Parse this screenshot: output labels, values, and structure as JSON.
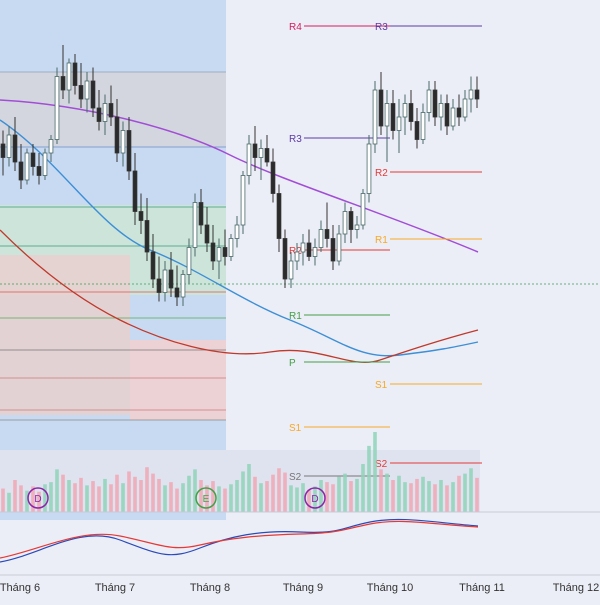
{
  "chart_data": {
    "type": "candlestick",
    "x_axis": {
      "tick_labels": [
        "Tháng 6",
        "Tháng 7",
        "Tháng 8",
        "Tháng 9",
        "Tháng 10",
        "Tháng 11",
        "Tháng 12"
      ]
    },
    "price_range": [
      0,
      100
    ],
    "candles": [
      {
        "o": 68,
        "h": 71,
        "l": 61,
        "c": 65
      },
      {
        "o": 65,
        "h": 72,
        "l": 63,
        "c": 70
      },
      {
        "o": 70,
        "h": 74,
        "l": 62,
        "c": 64
      },
      {
        "o": 64,
        "h": 68,
        "l": 58,
        "c": 60
      },
      {
        "o": 60,
        "h": 67,
        "l": 59,
        "c": 66
      },
      {
        "o": 66,
        "h": 68,
        "l": 61,
        "c": 63
      },
      {
        "o": 63,
        "h": 66,
        "l": 59,
        "c": 61
      },
      {
        "o": 61,
        "h": 67,
        "l": 60,
        "c": 66
      },
      {
        "o": 66,
        "h": 70,
        "l": 64,
        "c": 69
      },
      {
        "o": 69,
        "h": 85,
        "l": 68,
        "c": 83
      },
      {
        "o": 83,
        "h": 90,
        "l": 78,
        "c": 80
      },
      {
        "o": 80,
        "h": 87,
        "l": 77,
        "c": 86
      },
      {
        "o": 86,
        "h": 88,
        "l": 79,
        "c": 81
      },
      {
        "o": 81,
        "h": 86,
        "l": 76,
        "c": 78
      },
      {
        "o": 78,
        "h": 84,
        "l": 75,
        "c": 82
      },
      {
        "o": 82,
        "h": 85,
        "l": 74,
        "c": 76
      },
      {
        "o": 76,
        "h": 80,
        "l": 71,
        "c": 73
      },
      {
        "o": 73,
        "h": 79,
        "l": 70,
        "c": 77
      },
      {
        "o": 77,
        "h": 81,
        "l": 72,
        "c": 74
      },
      {
        "o": 74,
        "h": 78,
        "l": 64,
        "c": 66
      },
      {
        "o": 66,
        "h": 73,
        "l": 63,
        "c": 71
      },
      {
        "o": 71,
        "h": 74,
        "l": 60,
        "c": 62
      },
      {
        "o": 62,
        "h": 66,
        "l": 50,
        "c": 53
      },
      {
        "o": 53,
        "h": 57,
        "l": 48,
        "c": 51
      },
      {
        "o": 51,
        "h": 56,
        "l": 42,
        "c": 44
      },
      {
        "o": 44,
        "h": 48,
        "l": 36,
        "c": 38
      },
      {
        "o": 38,
        "h": 43,
        "l": 33,
        "c": 35
      },
      {
        "o": 35,
        "h": 42,
        "l": 33,
        "c": 40
      },
      {
        "o": 40,
        "h": 44,
        "l": 34,
        "c": 36
      },
      {
        "o": 36,
        "h": 41,
        "l": 32,
        "c": 34
      },
      {
        "o": 34,
        "h": 40,
        "l": 32,
        "c": 39
      },
      {
        "o": 39,
        "h": 47,
        "l": 37,
        "c": 45
      },
      {
        "o": 45,
        "h": 57,
        "l": 43,
        "c": 55
      },
      {
        "o": 55,
        "h": 58,
        "l": 48,
        "c": 50
      },
      {
        "o": 50,
        "h": 54,
        "l": 44,
        "c": 46
      },
      {
        "o": 46,
        "h": 50,
        "l": 40,
        "c": 42
      },
      {
        "o": 42,
        "h": 47,
        "l": 38,
        "c": 45
      },
      {
        "o": 45,
        "h": 49,
        "l": 41,
        "c": 43
      },
      {
        "o": 43,
        "h": 48,
        "l": 42,
        "c": 47
      },
      {
        "o": 47,
        "h": 52,
        "l": 45,
        "c": 50
      },
      {
        "o": 50,
        "h": 62,
        "l": 48,
        "c": 61
      },
      {
        "o": 61,
        "h": 70,
        "l": 59,
        "c": 68
      },
      {
        "o": 68,
        "h": 72,
        "l": 62,
        "c": 65
      },
      {
        "o": 65,
        "h": 69,
        "l": 60,
        "c": 67
      },
      {
        "o": 67,
        "h": 70,
        "l": 63,
        "c": 64
      },
      {
        "o": 64,
        "h": 67,
        "l": 55,
        "c": 57
      },
      {
        "o": 57,
        "h": 59,
        "l": 44,
        "c": 47
      },
      {
        "o": 47,
        "h": 49,
        "l": 36,
        "c": 38
      },
      {
        "o": 38,
        "h": 44,
        "l": 36,
        "c": 42
      },
      {
        "o": 42,
        "h": 46,
        "l": 40,
        "c": 44
      },
      {
        "o": 44,
        "h": 48,
        "l": 41,
        "c": 46
      },
      {
        "o": 46,
        "h": 49,
        "l": 42,
        "c": 43
      },
      {
        "o": 43,
        "h": 47,
        "l": 41,
        "c": 45
      },
      {
        "o": 45,
        "h": 51,
        "l": 44,
        "c": 49
      },
      {
        "o": 49,
        "h": 55,
        "l": 45,
        "c": 47
      },
      {
        "o": 47,
        "h": 50,
        "l": 40,
        "c": 42
      },
      {
        "o": 42,
        "h": 50,
        "l": 41,
        "c": 48
      },
      {
        "o": 48,
        "h": 55,
        "l": 46,
        "c": 53
      },
      {
        "o": 53,
        "h": 54,
        "l": 46,
        "c": 49
      },
      {
        "o": 49,
        "h": 52,
        "l": 47,
        "c": 50
      },
      {
        "o": 50,
        "h": 58,
        "l": 49,
        "c": 57
      },
      {
        "o": 57,
        "h": 70,
        "l": 55,
        "c": 68
      },
      {
        "o": 68,
        "h": 82,
        "l": 66,
        "c": 80
      },
      {
        "o": 80,
        "h": 84,
        "l": 70,
        "c": 72
      },
      {
        "o": 72,
        "h": 80,
        "l": 64,
        "c": 77
      },
      {
        "o": 77,
        "h": 80,
        "l": 69,
        "c": 71
      },
      {
        "o": 71,
        "h": 78,
        "l": 66,
        "c": 74
      },
      {
        "o": 74,
        "h": 79,
        "l": 70,
        "c": 77
      },
      {
        "o": 77,
        "h": 80,
        "l": 71,
        "c": 73
      },
      {
        "o": 73,
        "h": 76,
        "l": 67,
        "c": 69
      },
      {
        "o": 69,
        "h": 77,
        "l": 68,
        "c": 75
      },
      {
        "o": 75,
        "h": 82,
        "l": 73,
        "c": 80
      },
      {
        "o": 80,
        "h": 82,
        "l": 72,
        "c": 74
      },
      {
        "o": 74,
        "h": 79,
        "l": 71,
        "c": 77
      },
      {
        "o": 77,
        "h": 79,
        "l": 70,
        "c": 72
      },
      {
        "o": 72,
        "h": 78,
        "l": 71,
        "c": 76
      },
      {
        "o": 76,
        "h": 79,
        "l": 72,
        "c": 74
      },
      {
        "o": 74,
        "h": 80,
        "l": 73,
        "c": 78
      },
      {
        "o": 78,
        "h": 83,
        "l": 75,
        "c": 80
      },
      {
        "o": 80,
        "h": 83,
        "l": 76,
        "c": 78
      }
    ],
    "volume": [
      22,
      18,
      30,
      25,
      20,
      24,
      19,
      26,
      28,
      40,
      35,
      30,
      27,
      32,
      25,
      29,
      24,
      31,
      26,
      35,
      27,
      38,
      33,
      30,
      42,
      36,
      31,
      25,
      28,
      22,
      27,
      34,
      40,
      30,
      25,
      29,
      24,
      22,
      26,
      30,
      38,
      45,
      33,
      27,
      29,
      35,
      41,
      37,
      25,
      23,
      27,
      21,
      24,
      30,
      28,
      26,
      33,
      36,
      29,
      31,
      45,
      62,
      75,
      40,
      36,
      30,
      34,
      28,
      27,
      31,
      33,
      29,
      26,
      30,
      25,
      28,
      34,
      36,
      41,
      32
    ],
    "pivot_levels": [
      {
        "label": "R4",
        "value": 93.5,
        "color": "#d81b60"
      },
      {
        "label": "R3",
        "value": 93.5,
        "color": "#5c3aa8"
      },
      {
        "label": "R3",
        "value": 75.5,
        "color": "#5c3aa8"
      },
      {
        "label": "R2",
        "value": 70.0,
        "color": "#e53935"
      },
      {
        "label": "R2",
        "value": 51.5,
        "color": "#e53935"
      },
      {
        "label": "R1",
        "value": 57.0,
        "color": "#f9a825"
      },
      {
        "label": "R1",
        "value": 39.5,
        "color": "#43a047"
      },
      {
        "label": "P",
        "value": 28.0,
        "color": "#43a047"
      },
      {
        "label": "S1",
        "value": 20.5,
        "color": "#f9a825"
      },
      {
        "label": "S1",
        "value": 12.5,
        "color": "#f9a825"
      },
      {
        "label": "S2",
        "value": 2.5,
        "color": "#e53935"
      },
      {
        "label": "S2",
        "value": -1.0,
        "color": "#777777"
      }
    ],
    "markers": [
      {
        "text": "D",
        "color": "#8e24aa"
      },
      {
        "text": "E",
        "color": "#43a047"
      },
      {
        "text": "D",
        "color": "#8e24aa"
      }
    ],
    "current_price_dotted_level": 48,
    "colors": {
      "up": "#26a69a",
      "down": "#ef5350",
      "sma200": "#a24dd6",
      "sma100": "#3d8fd6",
      "background": "#eceef7"
    }
  }
}
